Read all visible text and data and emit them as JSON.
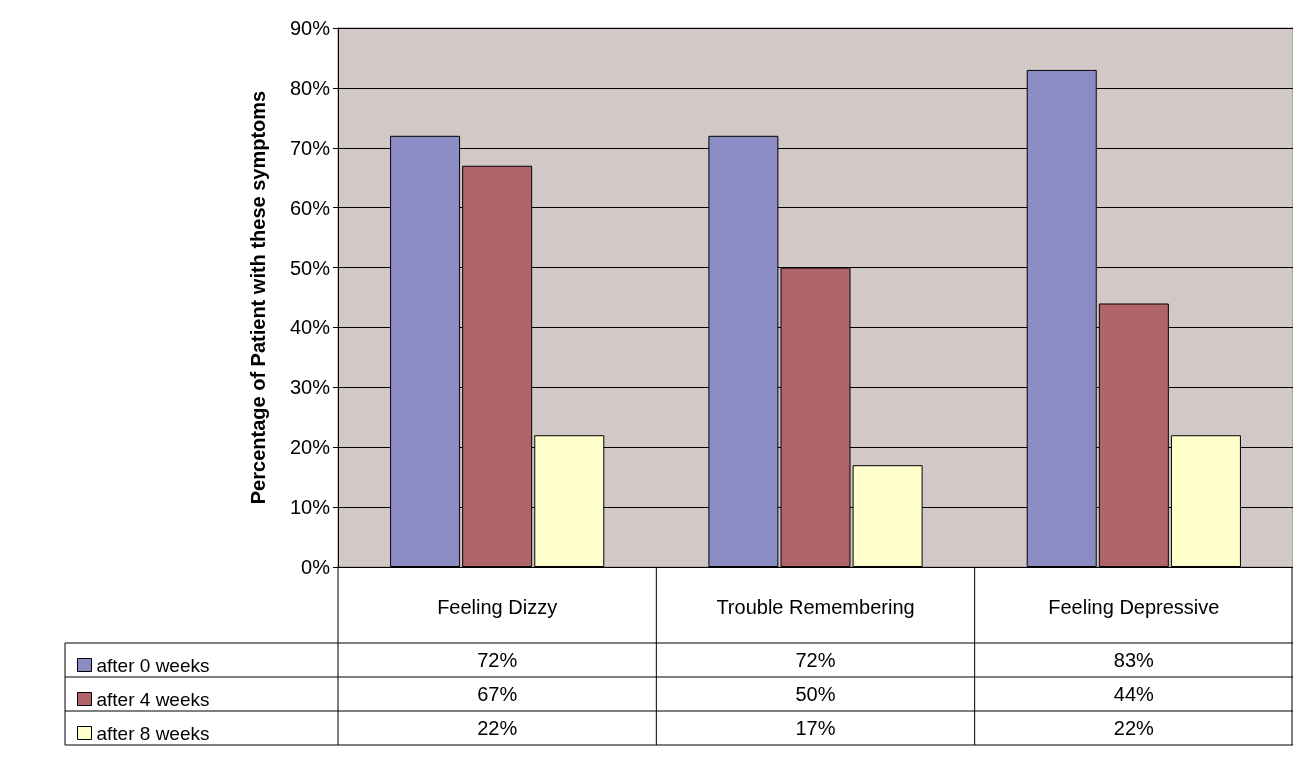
{
  "chart_data": {
    "type": "bar",
    "ylabel": "Percentage of Patient with these symptoms",
    "categories": [
      "Feeling Dizzy",
      "Trouble Remembering",
      "Feeling Depressive"
    ],
    "series": [
      {
        "name": "after 0 weeks",
        "color": "#8c8cc4",
        "values": [
          72,
          72,
          83
        ],
        "value_labels": [
          "72%",
          "72%",
          "83%"
        ]
      },
      {
        "name": "after 4 weeks",
        "color": "#b0646a",
        "values": [
          67,
          50,
          44
        ],
        "value_labels": [
          "67%",
          "50%",
          "44%"
        ]
      },
      {
        "name": "after 8 weeks",
        "color": "#ffffcc",
        "values": [
          22,
          17,
          22
        ],
        "value_labels": [
          "22%",
          "17%",
          "22%"
        ]
      }
    ],
    "ylim": [
      0,
      90
    ],
    "yticks": [
      {
        "value": 0,
        "label": "0%"
      },
      {
        "value": 10,
        "label": "10%"
      },
      {
        "value": 20,
        "label": "20%"
      },
      {
        "value": 30,
        "label": "30%"
      },
      {
        "value": 40,
        "label": "40%"
      },
      {
        "value": 50,
        "label": "50%"
      },
      {
        "value": 60,
        "label": "60%"
      },
      {
        "value": 70,
        "label": "70%"
      },
      {
        "value": 80,
        "label": "80%"
      },
      {
        "value": 90,
        "label": "90%"
      }
    ],
    "grid": "y",
    "legend": "bottom left"
  }
}
